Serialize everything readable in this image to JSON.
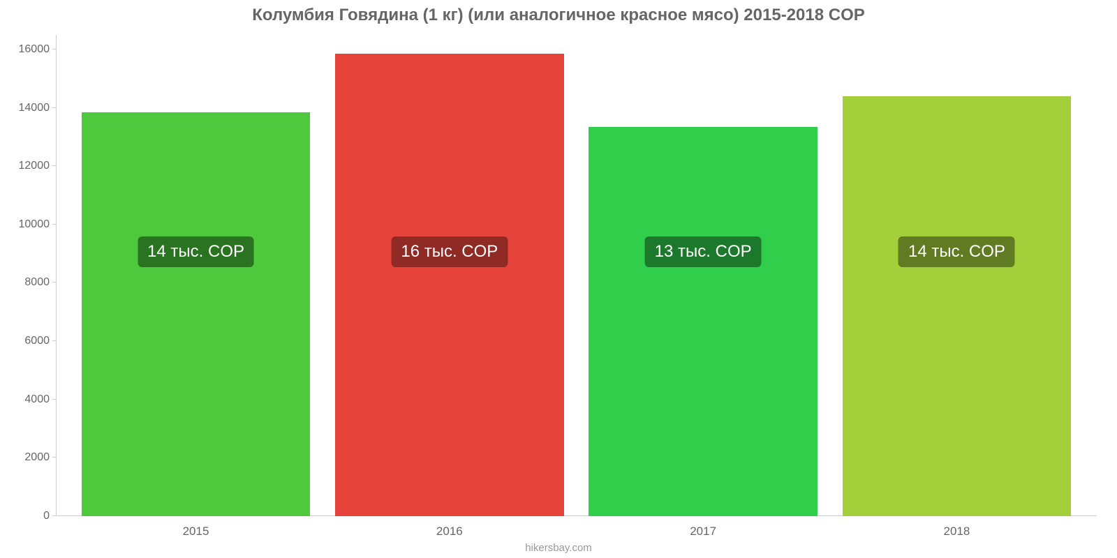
{
  "chart": {
    "type": "bar",
    "title": "Колумбия Говядина (1 кг) (или аналогичное красное мясо) 2015-2018 COP",
    "title_color": "#666666",
    "title_fontsize": 24,
    "background_color": "#ffffff",
    "axis_color": "#cccccc",
    "tick_label_color": "#666666",
    "tick_fontsize": 16,
    "yaxis": {
      "min": 0,
      "max": 16500,
      "ticks": [
        {
          "v": 0,
          "label": "0"
        },
        {
          "v": 2000,
          "label": "2000"
        },
        {
          "v": 4000,
          "label": "4000"
        },
        {
          "v": 6000,
          "label": "6000"
        },
        {
          "v": 8000,
          "label": "8000"
        },
        {
          "v": 10000,
          "label": "10000"
        },
        {
          "v": 12000,
          "label": "12000"
        },
        {
          "v": 14000,
          "label": "14000"
        },
        {
          "v": 16000,
          "label": "16000"
        }
      ]
    },
    "categories": [
      "2015",
      "2016",
      "2017",
      "2018"
    ],
    "values": [
      13850,
      15850,
      13350,
      14400
    ],
    "bar_colors": [
      "#4ec83c",
      "#e6433b",
      "#31ce4b",
      "#a3cf3a"
    ],
    "datalabels": [
      "14 тыс. COP",
      "16 тыс. COP",
      "13 тыс. COP",
      "14 тыс. COP"
    ],
    "datalabel_bg": [
      "#2a7421",
      "#902a25",
      "#1c792c",
      "#617b22"
    ],
    "datalabel_color": "#ffffff",
    "datalabel_fontsize": 24,
    "datalabel_y": 8000,
    "bar_width_pct": 22,
    "bar_gap_pct": 3,
    "attribution": "hikersbay.com",
    "attribution_color": "#999999"
  }
}
